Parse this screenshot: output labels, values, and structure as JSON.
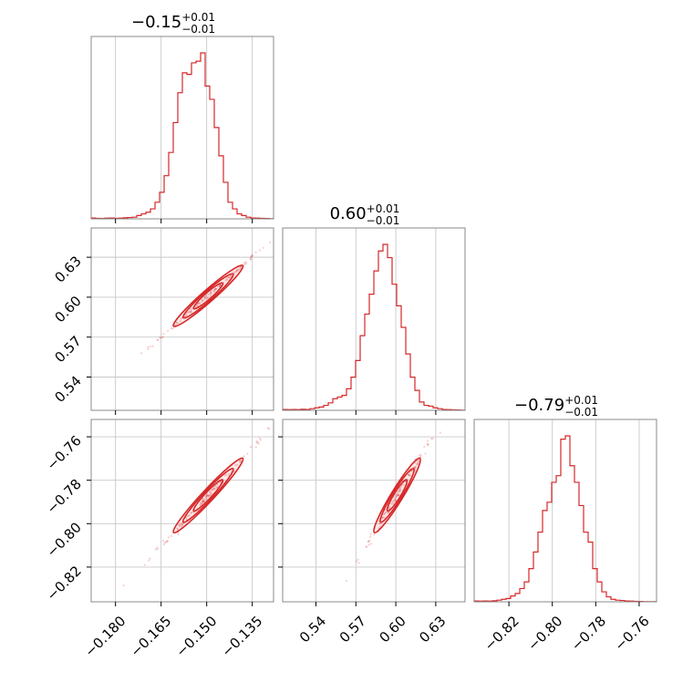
{
  "chart_data": {
    "type": "corner",
    "color": "#d62728",
    "parameters": [
      {
        "title_value": "−0.15",
        "title_plus": "+0.01",
        "title_minus": "−0.01",
        "range": [
          -0.188,
          -0.128
        ],
        "ticks": [
          {
            "v": -0.18,
            "label": "−0.180"
          },
          {
            "v": -0.165,
            "label": "−0.165"
          },
          {
            "v": -0.15,
            "label": "−0.150"
          },
          {
            "v": -0.135,
            "label": "−0.135"
          }
        ],
        "hist_mode": -0.1495,
        "hist": [
          0.005,
          0.003,
          0.002,
          0.004,
          0.005,
          0.003,
          0.004,
          0.006,
          0.008,
          0.01,
          0.02,
          0.03,
          0.04,
          0.06,
          0.1,
          0.16,
          0.26,
          0.4,
          0.58,
          0.76,
          0.88,
          0.87,
          0.94,
          0.95,
          1.0,
          0.8,
          0.72,
          0.55,
          0.38,
          0.22,
          0.1,
          0.06,
          0.03,
          0.02,
          0.01,
          0.005,
          0.004,
          0.003,
          0.002,
          0.001
        ]
      },
      {
        "title_value": "0.60",
        "title_plus": "+0.01",
        "title_minus": "−0.01",
        "range": [
          0.515,
          0.652
        ],
        "ticks": [
          {
            "v": 0.54,
            "label": "0.54"
          },
          {
            "v": 0.57,
            "label": "0.57"
          },
          {
            "v": 0.6,
            "label": "0.60"
          },
          {
            "v": 0.63,
            "label": "0.63"
          }
        ],
        "hist_mode": 0.601,
        "hist": [
          0.005,
          0.004,
          0.005,
          0.004,
          0.006,
          0.005,
          0.01,
          0.015,
          0.02,
          0.03,
          0.045,
          0.07,
          0.08,
          0.09,
          0.13,
          0.2,
          0.3,
          0.45,
          0.58,
          0.7,
          0.84,
          0.96,
          1.0,
          0.92,
          0.76,
          0.63,
          0.5,
          0.34,
          0.2,
          0.12,
          0.05,
          0.03,
          0.025,
          0.015,
          0.01,
          0.005,
          0.004,
          0.003,
          0.002,
          0.001
        ]
      },
      {
        "title_value": "−0.79",
        "title_plus": "+0.01",
        "title_minus": "−0.01",
        "range": [
          -0.836,
          -0.752
        ],
        "ticks": [
          {
            "v": -0.82,
            "label": "−0.82"
          },
          {
            "v": -0.8,
            "label": "−0.80"
          },
          {
            "v": -0.78,
            "label": "−0.78"
          },
          {
            "v": -0.76,
            "label": "−0.76"
          }
        ],
        "hist_mode": -0.787,
        "hist": [
          0.005,
          0.004,
          0.005,
          0.004,
          0.006,
          0.01,
          0.015,
          0.02,
          0.035,
          0.05,
          0.08,
          0.12,
          0.2,
          0.3,
          0.42,
          0.55,
          0.6,
          0.72,
          0.76,
          0.98,
          1.0,
          0.82,
          0.72,
          0.58,
          0.42,
          0.36,
          0.2,
          0.12,
          0.06,
          0.03,
          0.015,
          0.01,
          0.008,
          0.005,
          0.004,
          0.003,
          0.002,
          0.001,
          0.001,
          0.001
        ]
      }
    ],
    "pairs": [
      {
        "x_param": 0,
        "y_param": 1,
        "slope": 2.0
      },
      {
        "x_param": 0,
        "y_param": 2,
        "slope": 1.5
      },
      {
        "x_param": 1,
        "y_param": 2,
        "slope": 1.0
      }
    ]
  }
}
